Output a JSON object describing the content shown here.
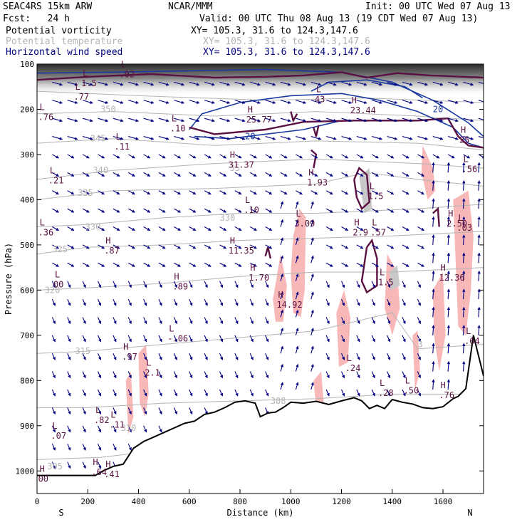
{
  "header": {
    "model": "SEAC4RS 15km ARW",
    "center": "NCAR/MMM",
    "init": "Init: 00 UTC Wed 07 Aug 13",
    "fcst": "Fcst:   24 h",
    "valid": "Valid: 00 UTC Thu 08 Aug 13 (19 CDT Wed 07 Aug 13)",
    "fields": [
      {
        "name": "Potential vorticity",
        "xy": "XY= 105.3, 31.6 to 124.3,147.6",
        "color": "#000000"
      },
      {
        "name": "Potential temperature",
        "xy": "XY= 105.3, 31.6 to 124.3,147.6",
        "color": "#b4b4b4"
      },
      {
        "name": "Horizontal wind speed",
        "xy": "XY= 105.3, 31.6 to 124.3,147.6",
        "color": "#000080"
      }
    ]
  },
  "chart_data": {
    "type": "cross-section",
    "xlabel": "Distance (km)",
    "ylabel": "Pressure (hPa)",
    "xlim": [
      0,
      1760
    ],
    "ylim": [
      1050,
      100
    ],
    "x_ticks": [
      "0",
      "200",
      "400",
      "600",
      "800",
      "1000",
      "1200",
      "1400",
      "1600"
    ],
    "y_ticks": [
      "100",
      "200",
      "300",
      "400",
      "500",
      "600",
      "700",
      "800",
      "900",
      "1000"
    ],
    "left_end_label": "S",
    "right_end_label": "N",
    "colors": {
      "pv_contour": "#5a1040",
      "theta_contour": "#b4b4b4",
      "wind_speed_contour": "#1a3aa0",
      "wind_arrows": "#000080",
      "positive_shading": "#f8b8b8",
      "terrain": "#000000"
    },
    "terrain": {
      "x": [
        0,
        230,
        260,
        300,
        340,
        380,
        420,
        460,
        500,
        540,
        580,
        620,
        660,
        700,
        740,
        780,
        820,
        860,
        880,
        910,
        940,
        970,
        1000,
        1050,
        1100,
        1150,
        1200,
        1250,
        1280,
        1310,
        1340,
        1370,
        1400,
        1440,
        1480,
        1520,
        1560,
        1600,
        1640,
        1660,
        1690,
        1720,
        1760
      ],
      "p": [
        1010,
        1010,
        1000,
        990,
        985,
        950,
        935,
        925,
        915,
        905,
        895,
        890,
        875,
        870,
        860,
        848,
        845,
        850,
        880,
        872,
        870,
        860,
        848,
        850,
        846,
        853,
        845,
        838,
        845,
        862,
        855,
        862,
        842,
        848,
        852,
        860,
        862,
        858,
        840,
        835,
        818,
        700,
        790
      ]
    },
    "theta_labels": [
      {
        "value": "350",
        "x": 250,
        "p": 200
      },
      {
        "value": "345",
        "x": 210,
        "p": 265
      },
      {
        "value": "340",
        "x": 220,
        "p": 335
      },
      {
        "value": "335",
        "x": 160,
        "p": 385
      },
      {
        "value": "330",
        "x": 190,
        "p": 460
      },
      {
        "value": "325",
        "x": 60,
        "p": 510
      },
      {
        "value": "320",
        "x": 30,
        "p": 600
      },
      {
        "value": "315",
        "x": 150,
        "p": 735
      },
      {
        "value": "310",
        "x": 330,
        "p": 905
      },
      {
        "value": "305",
        "x": 40,
        "p": 990
      },
      {
        "value": "35",
        "x": 760,
        "p": 330
      },
      {
        "value": "330",
        "x": 720,
        "p": 440
      },
      {
        "value": "3",
        "x": 1500,
        "p": 720
      },
      {
        "value": "308",
        "x": 920,
        "p": 845
      }
    ],
    "wind_speed_labels": [
      {
        "value": "20",
        "x": 1560,
        "p": 200
      },
      {
        "value": "20",
        "x": 820,
        "p": 260
      }
    ],
    "extrema": [
      {
        "type": "L",
        "value": "1.5",
        "x": 180,
        "p": 130
      },
      {
        "type": "L",
        "value": ".02",
        "x": 330,
        "p": 110
      },
      {
        "type": "L",
        "value": ".77",
        "x": 150,
        "p": 160
      },
      {
        "type": "L",
        "value": ".76",
        "x": 10,
        "p": 205
      },
      {
        "type": "L",
        "value": ".11",
        "x": 310,
        "p": 270
      },
      {
        "type": "L",
        "value": ".10",
        "x": 530,
        "p": 230
      },
      {
        "type": "L",
        "value": ".21",
        "x": 50,
        "p": 345
      },
      {
        "type": "H",
        "value": "25.77",
        "x": 830,
        "p": 210
      },
      {
        "type": "H",
        "value": "31.37",
        "x": 760,
        "p": 310
      },
      {
        "type": "L",
        "value": "43",
        "x": 1100,
        "p": 165
      },
      {
        "type": "H",
        "value": "23.44",
        "x": 1240,
        "p": 190
      },
      {
        "type": "H",
        "value": "25",
        "x": 1670,
        "p": 255
      },
      {
        "type": "H",
        "value": "1.93",
        "x": 1070,
        "p": 350
      },
      {
        "type": "L",
        "value": ".56",
        "x": 1680,
        "p": 320
      },
      {
        "type": "L",
        "value": ".10",
        "x": 820,
        "p": 410
      },
      {
        "type": "L",
        "value": "3.09",
        "x": 1020,
        "p": 440
      },
      {
        "type": "H",
        "value": "2.9",
        "x": 1250,
        "p": 460
      },
      {
        "type": "L",
        "value": "1.5",
        "x": 1310,
        "p": 380
      },
      {
        "type": "L",
        "value": ".57",
        "x": 1320,
        "p": 460
      },
      {
        "type": "H",
        "value": "2.50",
        "x": 1620,
        "p": 440
      },
      {
        "type": "L",
        "value": ".03",
        "x": 1660,
        "p": 450
      },
      {
        "type": "L",
        "value": ".36",
        "x": 10,
        "p": 460
      },
      {
        "type": "H",
        "value": ".87",
        "x": 270,
        "p": 500
      },
      {
        "type": "H",
        "value": "11.35",
        "x": 760,
        "p": 500
      },
      {
        "type": "H",
        "value": "1.70",
        "x": 840,
        "p": 560
      },
      {
        "type": "L",
        "value": "00",
        "x": 70,
        "p": 575
      },
      {
        "type": "H",
        "value": ".89",
        "x": 540,
        "p": 580
      },
      {
        "type": "H",
        "value": "12.36",
        "x": 1590,
        "p": 560
      },
      {
        "type": "L",
        "value": "1.5",
        "x": 1350,
        "p": 570
      },
      {
        "type": "H",
        "value": "14.92",
        "x": 950,
        "p": 620
      },
      {
        "type": "L",
        "value": "-.06",
        "x": 520,
        "p": 695
      },
      {
        "type": "L",
        "value": ".64",
        "x": 1690,
        "p": 700
      },
      {
        "type": "H",
        "value": ".97",
        "x": 340,
        "p": 735
      },
      {
        "type": "L",
        "value": "2.1",
        "x": 430,
        "p": 770
      },
      {
        "type": "L",
        "value": ".24",
        "x": 1220,
        "p": 760
      },
      {
        "type": "L",
        "value": ".50",
        "x": 1450,
        "p": 810
      },
      {
        "type": "L",
        "value": ".28",
        "x": 1350,
        "p": 815
      },
      {
        "type": "H",
        "value": ".76",
        "x": 1590,
        "p": 820
      },
      {
        "type": "L",
        "value": ".82",
        "x": 230,
        "p": 875
      },
      {
        "type": "L",
        "value": ".11",
        "x": 290,
        "p": 885
      },
      {
        "type": "L",
        "value": ".07",
        "x": 60,
        "p": 910
      },
      {
        "type": "H",
        "value": ".64",
        "x": 220,
        "p": 990
      },
      {
        "type": "H",
        "value": ".41",
        "x": 270,
        "p": 995
      },
      {
        "type": "H",
        "value": "00",
        "x": 10,
        "p": 1005
      }
    ]
  }
}
